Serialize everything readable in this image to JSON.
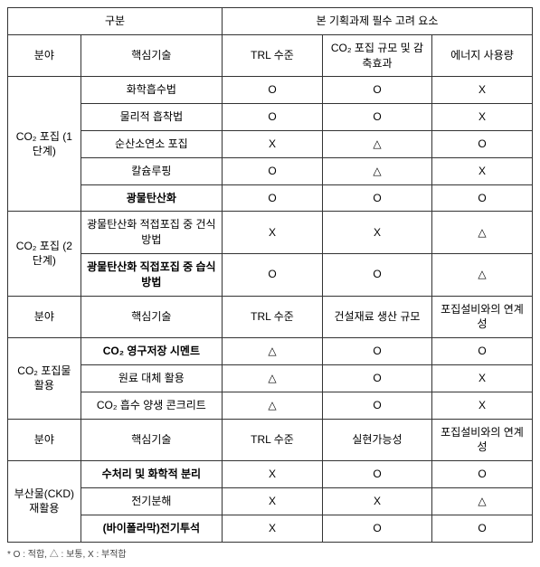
{
  "header": {
    "gubun": "구분",
    "considerations": "본 기획과제 필수 고려 요소",
    "field": "분야",
    "coretech": "핵심기술",
    "trl": "TRL 수준",
    "co2scale": "CO₂ 포집 규모 및 감축효과",
    "energy": "에너지 사용량",
    "construction": "건설재료 생산 규모",
    "linkage": "포집설비와의 연계성",
    "feasibility": "실현가능성"
  },
  "section1": {
    "field": "CO₂ 포집\n(1단계)",
    "rows": [
      {
        "tech": "화학흡수법",
        "c1": "O",
        "c2": "O",
        "c3": "X",
        "bold": false
      },
      {
        "tech": "물리적 흡착법",
        "c1": "O",
        "c2": "O",
        "c3": "X",
        "bold": false
      },
      {
        "tech": "순산소연소 포집",
        "c1": "X",
        "c2": "△",
        "c3": "O",
        "bold": false
      },
      {
        "tech": "칼슘루핑",
        "c1": "O",
        "c2": "△",
        "c3": "X",
        "bold": false
      },
      {
        "tech": "광물탄산화",
        "c1": "O",
        "c2": "O",
        "c3": "O",
        "bold": true
      }
    ]
  },
  "section2": {
    "field": "CO₂ 포집\n(2단계)",
    "rows": [
      {
        "tech": "광물탄산화 적접포집 중 건식방법",
        "c1": "X",
        "c2": "X",
        "c3": "△",
        "bold": false
      },
      {
        "tech": "광물탄산화 직접포집 중 습식방법",
        "c1": "O",
        "c2": "O",
        "c3": "△",
        "bold": true
      }
    ]
  },
  "section3": {
    "field": "CO₂ 포집물 활용",
    "rows": [
      {
        "tech": "CO₂ 영구저장 시멘트",
        "c1": "△",
        "c2": "O",
        "c3": "O",
        "bold": true
      },
      {
        "tech": "원료 대체 활용",
        "c1": "△",
        "c2": "O",
        "c3": "X",
        "bold": false
      },
      {
        "tech": "CO₂ 흡수 양생 콘크리트",
        "c1": "△",
        "c2": "O",
        "c3": "X",
        "bold": false
      }
    ]
  },
  "section4": {
    "field": "부산물(CKD) 재활용",
    "rows": [
      {
        "tech": "수처리 및 화학적 분리",
        "c1": "X",
        "c2": "O",
        "c3": "O",
        "bold": true
      },
      {
        "tech": "전기분해",
        "c1": "X",
        "c2": "X",
        "c3": "△",
        "bold": false
      },
      {
        "tech": "(바이폴라막)전기투석",
        "c1": "X",
        "c2": "O",
        "c3": "O",
        "bold": true
      }
    ]
  },
  "footnote": "* O : 적합, △ : 보통, X : 부적합"
}
